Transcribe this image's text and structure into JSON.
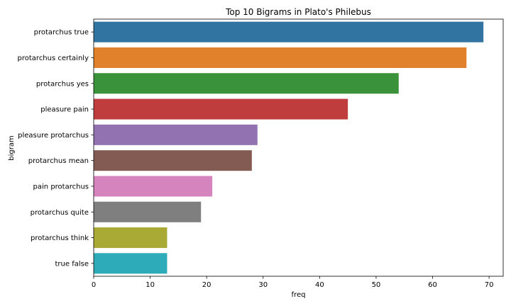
{
  "chart_data": {
    "type": "bar",
    "orientation": "horizontal",
    "title": "Top 10 Bigrams in Plato's Philebus",
    "xlabel": "freq",
    "ylabel": "bigram",
    "xlim": [
      0,
      72.5
    ],
    "xticks": [
      0,
      10,
      20,
      30,
      40,
      50,
      60,
      70
    ],
    "grid": false,
    "legend": "none",
    "categories": [
      "protarchus true",
      "protarchus certainly",
      "protarchus yes",
      "pleasure pain",
      "pleasure protarchus",
      "protarchus mean",
      "pain protarchus",
      "protarchus quite",
      "protarchus think",
      "true false"
    ],
    "values": [
      69,
      66,
      54,
      45,
      29,
      28,
      21,
      19,
      13,
      13
    ],
    "colors": [
      "#3274a1",
      "#e1812c",
      "#3a923a",
      "#c03d3e",
      "#9372b2",
      "#845b53",
      "#d684bd",
      "#7f7f7f",
      "#a9aa35",
      "#2eabb8"
    ]
  }
}
